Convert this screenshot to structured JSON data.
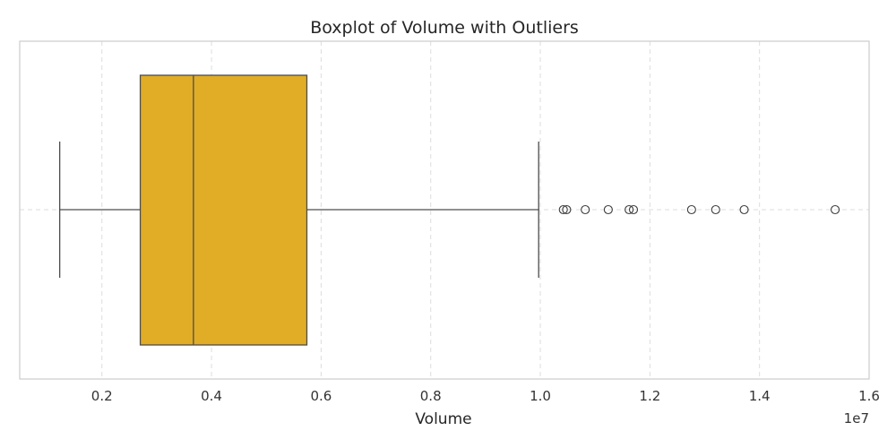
{
  "chart_data": {
    "type": "boxplot",
    "title": "Boxplot of Volume with Outliers",
    "xlabel": "Volume",
    "ylabel": "",
    "offset_label": "1e7",
    "xlim": [
      500000,
      16000000
    ],
    "xticks": [
      2000000,
      4000000,
      6000000,
      8000000,
      10000000,
      12000000,
      14000000,
      16000000
    ],
    "xtick_labels": [
      "0.2",
      "0.4",
      "0.6",
      "0.8",
      "1.0",
      "1.2",
      "1.4",
      "1.6"
    ],
    "grid": true,
    "orientation": "horizontal",
    "box_color": "#E1AD26",
    "line_color": "#4d4d4d",
    "whisker_low": 1230000,
    "q1": 2700000,
    "median": 3670000,
    "q3": 5740000,
    "whisker_high": 9970000,
    "outliers": [
      10420000,
      10480000,
      10820000,
      11240000,
      11620000,
      11700000,
      12760000,
      13200000,
      13720000,
      15380000
    ]
  }
}
